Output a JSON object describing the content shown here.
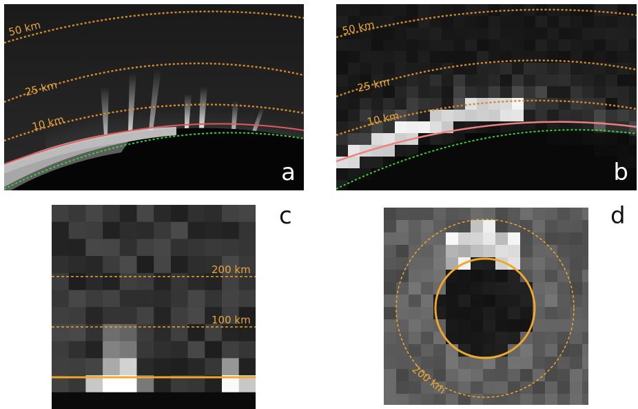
{
  "panels": {
    "a": {
      "letter": "a",
      "altitude_labels": [
        "50 km",
        "25 km",
        "10 km"
      ]
    },
    "b": {
      "letter": "b",
      "altitude_labels": [
        "50 km",
        "25 km",
        "10 km"
      ]
    },
    "c": {
      "letter": "c",
      "altitude_labels": [
        "200 km",
        "100 km"
      ]
    },
    "d": {
      "letter": "d",
      "altitude_labels": [
        "200 km"
      ]
    }
  },
  "colors": {
    "contour_orange": "#d28a2a",
    "label_orange": "#e8a63a",
    "bright_orange": "#f0a82a",
    "limb_red": "#e25a5a",
    "surface_green": "#33dd33"
  }
}
